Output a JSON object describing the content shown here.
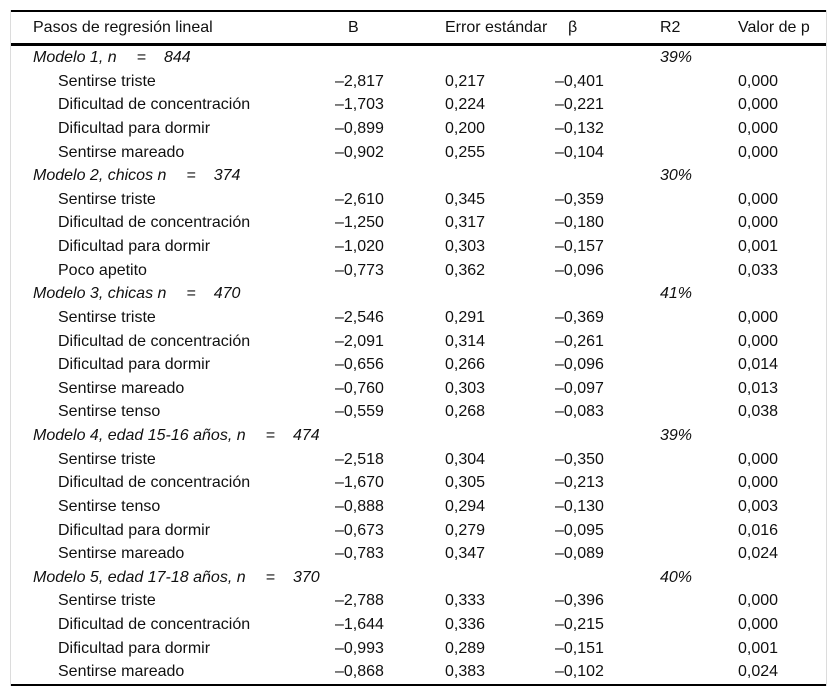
{
  "table": {
    "columns": [
      "Pasos de regresión lineal",
      "B",
      "Error estándar",
      "β",
      "R2",
      "Valor de p"
    ],
    "sections": [
      {
        "label": "Modelo 1, n",
        "equals_sign": "=",
        "n": "844",
        "r2": "39%",
        "rows": [
          {
            "label": "Sentirse triste",
            "b": "–2,817",
            "se": "0,217",
            "beta": "–0,401",
            "p": "0,000"
          },
          {
            "label": "Dificultad de concentración",
            "b": "–1,703",
            "se": "0,224",
            "beta": "–0,221",
            "p": "0,000"
          },
          {
            "label": "Dificultad para dormir",
            "b": "–0,899",
            "se": "0,200",
            "beta": "–0,132",
            "p": "0,000"
          },
          {
            "label": "Sentirse mareado",
            "b": "–0,902",
            "se": "0,255",
            "beta": "–0,104",
            "p": "0,000"
          }
        ]
      },
      {
        "label": "Modelo 2, chicos n",
        "equals_sign": "=",
        "n": "374",
        "r2": "30%",
        "rows": [
          {
            "label": "Sentirse triste",
            "b": "–2,610",
            "se": "0,345",
            "beta": "–0,359",
            "p": "0,000"
          },
          {
            "label": "Dificultad de concentración",
            "b": "–1,250",
            "se": "0,317",
            "beta": "–0,180",
            "p": "0,000"
          },
          {
            "label": "Dificultad para dormir",
            "b": "–1,020",
            "se": "0,303",
            "beta": "–0,157",
            "p": "0,001"
          },
          {
            "label": "Poco apetito",
            "b": "–0,773",
            "se": "0,362",
            "beta": "–0,096",
            "p": "0,033"
          }
        ]
      },
      {
        "label": "Modelo 3, chicas n",
        "equals_sign": "=",
        "n": "470",
        "r2": "41%",
        "rows": [
          {
            "label": "Sentirse triste",
            "b": "–2,546",
            "se": "0,291",
            "beta": "–0,369",
            "p": "0,000"
          },
          {
            "label": "Dificultad de concentración",
            "b": "–2,091",
            "se": "0,314",
            "beta": "–0,261",
            "p": "0,000"
          },
          {
            "label": "Dificultad para dormir",
            "b": "–0,656",
            "se": "0,266",
            "beta": "–0,096",
            "p": "0,014"
          },
          {
            "label": "Sentirse mareado",
            "b": "–0,760",
            "se": "0,303",
            "beta": "–0,097",
            "p": "0,013"
          },
          {
            "label": "Sentirse tenso",
            "b": "–0,559",
            "se": "0,268",
            "beta": "–0,083",
            "p": "0,038"
          }
        ]
      },
      {
        "label": "Modelo 4, edad 15-16 años, n",
        "equals_sign": "=",
        "n": "474",
        "r2": "39%",
        "rows": [
          {
            "label": "Sentirse triste",
            "b": "–2,518",
            "se": "0,304",
            "beta": "–0,350",
            "p": "0,000"
          },
          {
            "label": "Dificultad de concentración",
            "b": "–1,670",
            "se": "0,305",
            "beta": "–0,213",
            "p": "0,000"
          },
          {
            "label": "Sentirse tenso",
            "b": "–0,888",
            "se": "0,294",
            "beta": "–0,130",
            "p": "0,003"
          },
          {
            "label": "Dificultad para dormir",
            "b": "–0,673",
            "se": "0,279",
            "beta": "–0,095",
            "p": "0,016"
          },
          {
            "label": "Sentirse mareado",
            "b": "–0,783",
            "se": "0,347",
            "beta": "–0,089",
            "p": "0,024"
          }
        ]
      },
      {
        "label": "Modelo 5, edad 17-18 años, n",
        "equals_sign": "=",
        "n": "370",
        "r2": "40%",
        "rows": [
          {
            "label": "Sentirse triste",
            "b": "–2,788",
            "se": "0,333",
            "beta": "–0,396",
            "p": "0,000"
          },
          {
            "label": "Dificultad de concentración",
            "b": "–1,644",
            "se": "0,336",
            "beta": "–0,215",
            "p": "0,000"
          },
          {
            "label": "Dificultad para dormir",
            "b": "–0,993",
            "se": "0,289",
            "beta": "–0,151",
            "p": "0,001"
          },
          {
            "label": "Sentirse mareado",
            "b": "–0,868",
            "se": "0,383",
            "beta": "–0,102",
            "p": "0,024"
          }
        ]
      }
    ]
  }
}
